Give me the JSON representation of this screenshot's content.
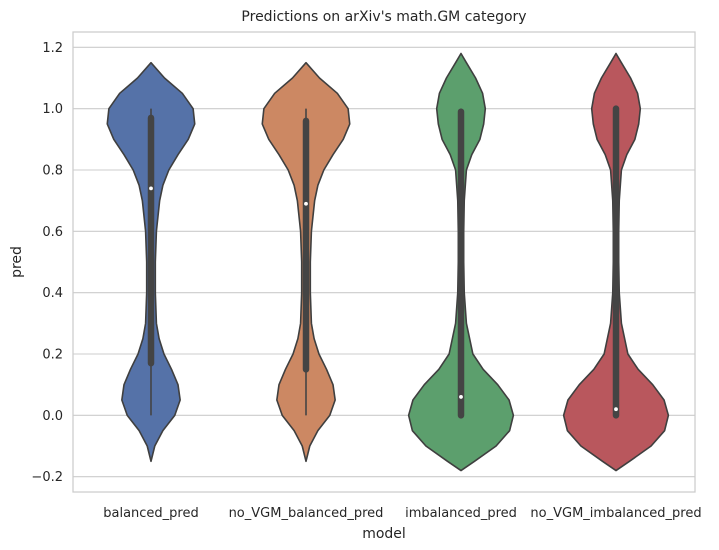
{
  "chart_data": {
    "type": "violin",
    "title": "Predictions on arXiv's math.GM category",
    "xlabel": "model",
    "ylabel": "pred",
    "ylim": [
      -0.25,
      1.25
    ],
    "yticks": [
      -0.2,
      0.0,
      0.2,
      0.4,
      0.6,
      0.8,
      1.0,
      1.2
    ],
    "ytick_labels": [
      "−0.2",
      "0.0",
      "0.2",
      "0.4",
      "0.6",
      "0.8",
      "1.0",
      "1.2"
    ],
    "grid": "horizontal",
    "categories": [
      "balanced_pred",
      "no_VGM_balanced_pred",
      "imbalanced_pred",
      "no_VGM_imbalanced_pred"
    ],
    "series": [
      {
        "category": "balanced_pred",
        "color": "#5572a8",
        "whisker": [
          0.0,
          1.0
        ],
        "box": [
          0.17,
          0.97
        ],
        "median": 0.74,
        "density_profile": [
          [
            -0.15,
            0.0
          ],
          [
            -0.1,
            0.07
          ],
          [
            -0.05,
            0.22
          ],
          [
            0.0,
            0.44
          ],
          [
            0.05,
            0.54
          ],
          [
            0.1,
            0.5
          ],
          [
            0.15,
            0.38
          ],
          [
            0.2,
            0.24
          ],
          [
            0.25,
            0.15
          ],
          [
            0.3,
            0.1
          ],
          [
            0.4,
            0.08
          ],
          [
            0.5,
            0.08
          ],
          [
            0.6,
            0.1
          ],
          [
            0.7,
            0.16
          ],
          [
            0.75,
            0.22
          ],
          [
            0.8,
            0.33
          ],
          [
            0.85,
            0.5
          ],
          [
            0.9,
            0.69
          ],
          [
            0.95,
            0.81
          ],
          [
            1.0,
            0.78
          ],
          [
            1.05,
            0.58
          ],
          [
            1.1,
            0.25
          ],
          [
            1.15,
            0.0
          ]
        ]
      },
      {
        "category": "no_VGM_balanced_pred",
        "color": "#cc8863",
        "whisker": [
          0.0,
          1.0
        ],
        "box": [
          0.15,
          0.96
        ],
        "median": 0.69,
        "density_profile": [
          [
            -0.15,
            0.0
          ],
          [
            -0.1,
            0.07
          ],
          [
            -0.05,
            0.22
          ],
          [
            0.0,
            0.44
          ],
          [
            0.05,
            0.54
          ],
          [
            0.1,
            0.5
          ],
          [
            0.15,
            0.38
          ],
          [
            0.2,
            0.24
          ],
          [
            0.25,
            0.15
          ],
          [
            0.3,
            0.1
          ],
          [
            0.4,
            0.08
          ],
          [
            0.5,
            0.08
          ],
          [
            0.6,
            0.1
          ],
          [
            0.7,
            0.16
          ],
          [
            0.75,
            0.22
          ],
          [
            0.8,
            0.33
          ],
          [
            0.85,
            0.5
          ],
          [
            0.9,
            0.69
          ],
          [
            0.95,
            0.81
          ],
          [
            1.0,
            0.78
          ],
          [
            1.05,
            0.58
          ],
          [
            1.1,
            0.25
          ],
          [
            1.15,
            0.0
          ]
        ]
      },
      {
        "category": "imbalanced_pred",
        "color": "#5c9f6d",
        "whisker": [
          0.0,
          1.0
        ],
        "box": [
          0.0,
          0.99
        ],
        "median": 0.06,
        "density_profile": [
          [
            -0.18,
            0.0
          ],
          [
            -0.15,
            0.25
          ],
          [
            -0.1,
            0.65
          ],
          [
            -0.05,
            0.9
          ],
          [
            0.0,
            0.97
          ],
          [
            0.05,
            0.89
          ],
          [
            0.1,
            0.68
          ],
          [
            0.15,
            0.41
          ],
          [
            0.2,
            0.22
          ],
          [
            0.3,
            0.1
          ],
          [
            0.4,
            0.06
          ],
          [
            0.5,
            0.05
          ],
          [
            0.6,
            0.05
          ],
          [
            0.7,
            0.06
          ],
          [
            0.8,
            0.1
          ],
          [
            0.85,
            0.2
          ],
          [
            0.9,
            0.35
          ],
          [
            0.95,
            0.42
          ],
          [
            1.0,
            0.45
          ],
          [
            1.05,
            0.4
          ],
          [
            1.1,
            0.27
          ],
          [
            1.15,
            0.1
          ],
          [
            1.18,
            0.0
          ]
        ]
      },
      {
        "category": "no_VGM_imbalanced_pred",
        "color": "#b9575d",
        "whisker": [
          0.0,
          1.0
        ],
        "box": [
          0.0,
          1.0
        ],
        "median": 0.02,
        "density_profile": [
          [
            -0.18,
            0.0
          ],
          [
            -0.15,
            0.25
          ],
          [
            -0.1,
            0.65
          ],
          [
            -0.05,
            0.9
          ],
          [
            0.0,
            0.97
          ],
          [
            0.05,
            0.89
          ],
          [
            0.1,
            0.68
          ],
          [
            0.15,
            0.41
          ],
          [
            0.2,
            0.22
          ],
          [
            0.3,
            0.1
          ],
          [
            0.4,
            0.06
          ],
          [
            0.5,
            0.05
          ],
          [
            0.6,
            0.05
          ],
          [
            0.7,
            0.06
          ],
          [
            0.8,
            0.1
          ],
          [
            0.85,
            0.2
          ],
          [
            0.9,
            0.35
          ],
          [
            0.95,
            0.42
          ],
          [
            1.0,
            0.45
          ],
          [
            1.05,
            0.4
          ],
          [
            1.1,
            0.27
          ],
          [
            1.15,
            0.1
          ],
          [
            1.18,
            0.0
          ]
        ]
      }
    ]
  }
}
